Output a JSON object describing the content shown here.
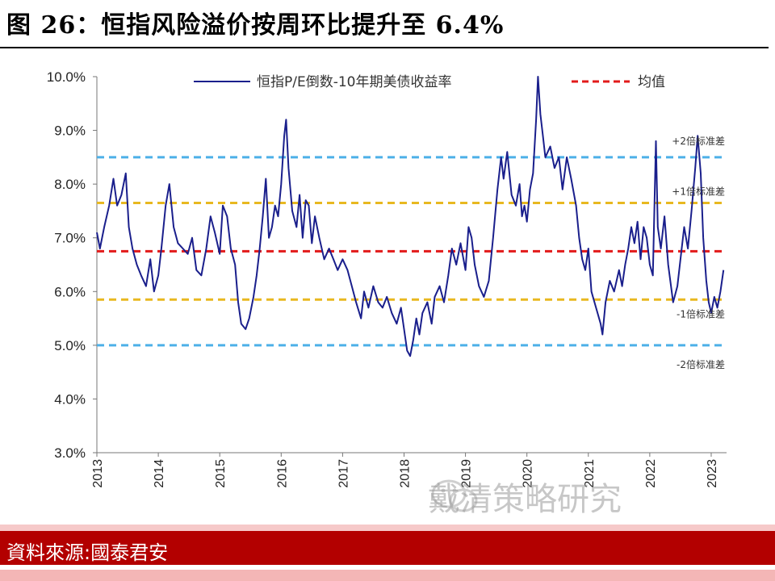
{
  "title": "图 26：恒指风险溢价按周环比提升至 6.4%",
  "source_label": "資料來源:國泰君安",
  "watermark": "戴清策略研究",
  "chart_data": {
    "type": "line",
    "ylim": [
      0.03,
      0.1
    ],
    "y_ticks": [
      "10.0%",
      "9.0%",
      "8.0%",
      "7.0%",
      "6.0%",
      "5.0%",
      "4.0%",
      "3.0%"
    ],
    "x_ticks": [
      "2013",
      "2014",
      "2015",
      "2016",
      "2017",
      "2018",
      "2019",
      "2020",
      "2021",
      "2022",
      "2023"
    ],
    "legend": {
      "placement": "top",
      "series_label": "恒指P/E倒数-10年期美债收益率",
      "mean_label": "均值"
    },
    "reference_lines": [
      {
        "label": "+2倍标准差",
        "value": 0.085,
        "color": "#4db0e8"
      },
      {
        "label": "+1倍标准差",
        "value": 0.0765,
        "color": "#e8b820"
      },
      {
        "label": "",
        "value": 0.0675,
        "color": "#e21a1a"
      },
      {
        "label": "-1倍标准差",
        "value": 0.0585,
        "color": "#e8b820"
      },
      {
        "label": "-2倍标准差",
        "value": 0.05,
        "color": "#4db0e8"
      }
    ],
    "series": [
      {
        "color": "#1a1f8c",
        "points": [
          [
            2013.0,
            0.071
          ],
          [
            2013.05,
            0.068
          ],
          [
            2013.12,
            0.072
          ],
          [
            2013.2,
            0.076
          ],
          [
            2013.27,
            0.081
          ],
          [
            2013.33,
            0.076
          ],
          [
            2013.4,
            0.078
          ],
          [
            2013.47,
            0.082
          ],
          [
            2013.52,
            0.072
          ],
          [
            2013.58,
            0.068
          ],
          [
            2013.65,
            0.065
          ],
          [
            2013.72,
            0.063
          ],
          [
            2013.8,
            0.061
          ],
          [
            2013.87,
            0.066
          ],
          [
            2013.93,
            0.06
          ],
          [
            2014.0,
            0.063
          ],
          [
            2014.05,
            0.068
          ],
          [
            2014.12,
            0.076
          ],
          [
            2014.18,
            0.08
          ],
          [
            2014.25,
            0.072
          ],
          [
            2014.32,
            0.069
          ],
          [
            2014.4,
            0.068
          ],
          [
            2014.48,
            0.067
          ],
          [
            2014.55,
            0.07
          ],
          [
            2014.62,
            0.064
          ],
          [
            2014.7,
            0.063
          ],
          [
            2014.78,
            0.068
          ],
          [
            2014.85,
            0.074
          ],
          [
            2014.92,
            0.071
          ],
          [
            2015.0,
            0.067
          ],
          [
            2015.05,
            0.076
          ],
          [
            2015.12,
            0.074
          ],
          [
            2015.18,
            0.068
          ],
          [
            2015.25,
            0.065
          ],
          [
            2015.3,
            0.058
          ],
          [
            2015.35,
            0.054
          ],
          [
            2015.42,
            0.053
          ],
          [
            2015.48,
            0.055
          ],
          [
            2015.55,
            0.059
          ],
          [
            2015.6,
            0.063
          ],
          [
            2015.65,
            0.068
          ],
          [
            2015.7,
            0.074
          ],
          [
            2015.75,
            0.081
          ],
          [
            2015.8,
            0.07
          ],
          [
            2015.85,
            0.072
          ],
          [
            2015.9,
            0.076
          ],
          [
            2015.95,
            0.074
          ],
          [
            2016.0,
            0.08
          ],
          [
            2016.05,
            0.089
          ],
          [
            2016.08,
            0.092
          ],
          [
            2016.12,
            0.083
          ],
          [
            2016.18,
            0.075
          ],
          [
            2016.25,
            0.072
          ],
          [
            2016.3,
            0.078
          ],
          [
            2016.35,
            0.07
          ],
          [
            2016.4,
            0.077
          ],
          [
            2016.45,
            0.076
          ],
          [
            2016.5,
            0.069
          ],
          [
            2016.55,
            0.074
          ],
          [
            2016.62,
            0.07
          ],
          [
            2016.7,
            0.066
          ],
          [
            2016.78,
            0.068
          ],
          [
            2016.85,
            0.066
          ],
          [
            2016.92,
            0.064
          ],
          [
            2017.0,
            0.066
          ],
          [
            2017.08,
            0.064
          ],
          [
            2017.15,
            0.061
          ],
          [
            2017.22,
            0.058
          ],
          [
            2017.3,
            0.055
          ],
          [
            2017.35,
            0.06
          ],
          [
            2017.42,
            0.057
          ],
          [
            2017.5,
            0.061
          ],
          [
            2017.58,
            0.058
          ],
          [
            2017.65,
            0.057
          ],
          [
            2017.72,
            0.059
          ],
          [
            2017.8,
            0.056
          ],
          [
            2017.88,
            0.054
          ],
          [
            2017.95,
            0.057
          ],
          [
            2018.0,
            0.053
          ],
          [
            2018.05,
            0.049
          ],
          [
            2018.1,
            0.048
          ],
          [
            2018.15,
            0.051
          ],
          [
            2018.2,
            0.055
          ],
          [
            2018.25,
            0.052
          ],
          [
            2018.3,
            0.056
          ],
          [
            2018.38,
            0.058
          ],
          [
            2018.45,
            0.054
          ],
          [
            2018.5,
            0.059
          ],
          [
            2018.58,
            0.061
          ],
          [
            2018.65,
            0.058
          ],
          [
            2018.72,
            0.063
          ],
          [
            2018.78,
            0.068
          ],
          [
            2018.85,
            0.065
          ],
          [
            2018.92,
            0.069
          ],
          [
            2019.0,
            0.064
          ],
          [
            2019.05,
            0.072
          ],
          [
            2019.1,
            0.07
          ],
          [
            2019.15,
            0.065
          ],
          [
            2019.22,
            0.061
          ],
          [
            2019.3,
            0.059
          ],
          [
            2019.38,
            0.062
          ],
          [
            2019.45,
            0.07
          ],
          [
            2019.52,
            0.079
          ],
          [
            2019.58,
            0.085
          ],
          [
            2019.62,
            0.081
          ],
          [
            2019.68,
            0.086
          ],
          [
            2019.75,
            0.078
          ],
          [
            2019.82,
            0.076
          ],
          [
            2019.88,
            0.08
          ],
          [
            2019.92,
            0.074
          ],
          [
            2019.96,
            0.076
          ],
          [
            2020.0,
            0.073
          ],
          [
            2020.05,
            0.079
          ],
          [
            2020.1,
            0.082
          ],
          [
            2020.15,
            0.092
          ],
          [
            2020.18,
            0.1
          ],
          [
            2020.22,
            0.093
          ],
          [
            2020.26,
            0.089
          ],
          [
            2020.3,
            0.085
          ],
          [
            2020.38,
            0.087
          ],
          [
            2020.45,
            0.083
          ],
          [
            2020.52,
            0.085
          ],
          [
            2020.58,
            0.079
          ],
          [
            2020.65,
            0.085
          ],
          [
            2020.72,
            0.081
          ],
          [
            2020.8,
            0.076
          ],
          [
            2020.85,
            0.07
          ],
          [
            2020.9,
            0.066
          ],
          [
            2020.95,
            0.064
          ],
          [
            2021.0,
            0.068
          ],
          [
            2021.05,
            0.06
          ],
          [
            2021.1,
            0.058
          ],
          [
            2021.15,
            0.056
          ],
          [
            2021.2,
            0.054
          ],
          [
            2021.23,
            0.052
          ],
          [
            2021.28,
            0.058
          ],
          [
            2021.35,
            0.062
          ],
          [
            2021.42,
            0.06
          ],
          [
            2021.5,
            0.064
          ],
          [
            2021.55,
            0.061
          ],
          [
            2021.6,
            0.065
          ],
          [
            2021.65,
            0.068
          ],
          [
            2021.7,
            0.072
          ],
          [
            2021.75,
            0.069
          ],
          [
            2021.8,
            0.073
          ],
          [
            2021.85,
            0.066
          ],
          [
            2021.9,
            0.072
          ],
          [
            2021.95,
            0.07
          ],
          [
            2022.0,
            0.065
          ],
          [
            2022.05,
            0.063
          ],
          [
            2022.1,
            0.088
          ],
          [
            2022.13,
            0.072
          ],
          [
            2022.18,
            0.068
          ],
          [
            2022.24,
            0.074
          ],
          [
            2022.3,
            0.065
          ],
          [
            2022.38,
            0.058
          ],
          [
            2022.45,
            0.061
          ],
          [
            2022.5,
            0.066
          ],
          [
            2022.56,
            0.072
          ],
          [
            2022.62,
            0.068
          ],
          [
            2022.68,
            0.075
          ],
          [
            2022.74,
            0.083
          ],
          [
            2022.78,
            0.089
          ],
          [
            2022.83,
            0.082
          ],
          [
            2022.87,
            0.07
          ],
          [
            2022.92,
            0.062
          ],
          [
            2022.96,
            0.058
          ],
          [
            2023.0,
            0.056
          ],
          [
            2023.05,
            0.059
          ],
          [
            2023.1,
            0.057
          ],
          [
            2023.15,
            0.06
          ],
          [
            2023.2,
            0.064
          ]
        ]
      }
    ]
  }
}
